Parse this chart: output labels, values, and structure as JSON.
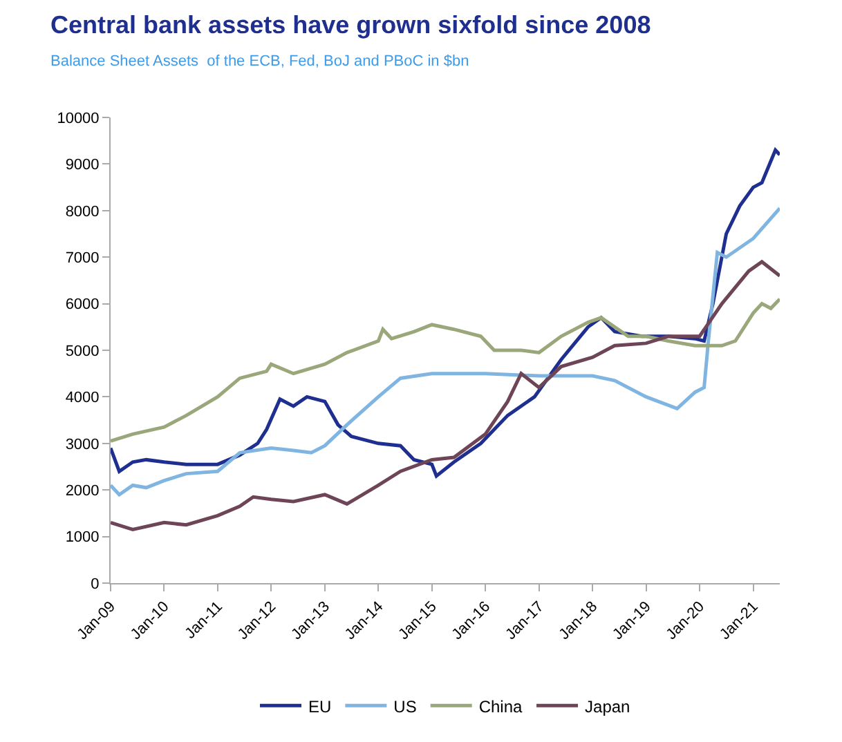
{
  "chart_data": {
    "type": "line",
    "title": "Central bank assets have grown sixfold since 2008",
    "subtitle": "Balance Sheet Assets  of the ECB, Fed, BoJ and PBoC in $bn",
    "xlim": [
      "2009-01",
      "2021-07"
    ],
    "xticks": [
      {
        "value": "2009-01",
        "label": "Jan-09"
      },
      {
        "value": "2010-01",
        "label": "Jan-10"
      },
      {
        "value": "2011-01",
        "label": "Jan-11"
      },
      {
        "value": "2012-01",
        "label": "Jan-12"
      },
      {
        "value": "2013-01",
        "label": "Jan-13"
      },
      {
        "value": "2014-01",
        "label": "Jan-14"
      },
      {
        "value": "2015-01",
        "label": "Jan-15"
      },
      {
        "value": "2016-01",
        "label": "Jan-16"
      },
      {
        "value": "2017-01",
        "label": "Jan-17"
      },
      {
        "value": "2018-01",
        "label": "Jan-18"
      },
      {
        "value": "2019-01",
        "label": "Jan-19"
      },
      {
        "value": "2020-01",
        "label": "Jan-20"
      },
      {
        "value": "2021-01",
        "label": "Jan-21"
      }
    ],
    "ylim": [
      0,
      10000
    ],
    "yticks": [
      0,
      1000,
      2000,
      3000,
      4000,
      5000,
      6000,
      7000,
      8000,
      9000,
      10000
    ],
    "legend": "bottom",
    "marker": "none",
    "line_style": "solid",
    "series": [
      {
        "name": "EU",
        "color": "#1f2f8f",
        "x": [
          "2009-01",
          "2009-03",
          "2009-06",
          "2009-09",
          "2010-01",
          "2010-06",
          "2011-01",
          "2011-06",
          "2011-10",
          "2011-12",
          "2012-03",
          "2012-06",
          "2012-09",
          "2013-01",
          "2013-04",
          "2013-07",
          "2014-01",
          "2014-06",
          "2014-09",
          "2015-01",
          "2015-02",
          "2015-06",
          "2015-12",
          "2016-06",
          "2016-12",
          "2017-06",
          "2017-12",
          "2018-03",
          "2018-06",
          "2018-12",
          "2019-06",
          "2019-12",
          "2020-02",
          "2020-04",
          "2020-07",
          "2020-10",
          "2021-01",
          "2021-03",
          "2021-06",
          "2021-07"
        ],
        "values": [
          2900,
          2400,
          2600,
          2650,
          2600,
          2550,
          2550,
          2750,
          3000,
          3300,
          3950,
          3800,
          4000,
          3900,
          3400,
          3150,
          3000,
          2950,
          2650,
          2550,
          2300,
          2600,
          3000,
          3600,
          4000,
          4800,
          5500,
          5700,
          5400,
          5300,
          5300,
          5250,
          5200,
          6000,
          7500,
          8100,
          8500,
          8600,
          9300,
          9200
        ]
      },
      {
        "name": "US",
        "color": "#7fb5e0",
        "x": [
          "2009-01",
          "2009-03",
          "2009-06",
          "2009-09",
          "2010-01",
          "2010-06",
          "2011-01",
          "2011-06",
          "2012-01",
          "2012-06",
          "2012-10",
          "2013-01",
          "2013-06",
          "2014-01",
          "2014-06",
          "2015-01",
          "2016-01",
          "2017-01",
          "2018-01",
          "2018-06",
          "2019-01",
          "2019-08",
          "2019-12",
          "2020-02",
          "2020-03",
          "2020-05",
          "2020-07",
          "2021-01",
          "2021-07"
        ],
        "values": [
          2100,
          1900,
          2100,
          2050,
          2200,
          2350,
          2400,
          2800,
          2900,
          2850,
          2800,
          2950,
          3400,
          4000,
          4400,
          4500,
          4500,
          4450,
          4450,
          4350,
          4000,
          3750,
          4100,
          4200,
          5200,
          7100,
          7000,
          7400,
          8050
        ]
      },
      {
        "name": "China",
        "color": "#9aa77a",
        "x": [
          "2009-01",
          "2009-06",
          "2010-01",
          "2010-06",
          "2011-01",
          "2011-06",
          "2011-12",
          "2012-01",
          "2012-06",
          "2013-01",
          "2013-06",
          "2014-01",
          "2014-02",
          "2014-04",
          "2014-09",
          "2015-01",
          "2015-06",
          "2015-12",
          "2016-03",
          "2016-09",
          "2017-01",
          "2017-06",
          "2017-12",
          "2018-03",
          "2018-09",
          "2019-01",
          "2019-06",
          "2019-12",
          "2020-06",
          "2020-09",
          "2021-01",
          "2021-03",
          "2021-05",
          "2021-07"
        ],
        "values": [
          3050,
          3200,
          3350,
          3600,
          4000,
          4400,
          4550,
          4700,
          4500,
          4700,
          4950,
          5200,
          5450,
          5250,
          5400,
          5550,
          5450,
          5300,
          5000,
          5000,
          4950,
          5300,
          5600,
          5700,
          5300,
          5300,
          5200,
          5100,
          5100,
          5200,
          5800,
          6000,
          5900,
          6100
        ]
      },
      {
        "name": "Japan",
        "color": "#6e4457",
        "x": [
          "2009-01",
          "2009-06",
          "2010-01",
          "2010-06",
          "2011-01",
          "2011-06",
          "2011-09",
          "2012-01",
          "2012-06",
          "2013-01",
          "2013-06",
          "2014-01",
          "2014-06",
          "2015-01",
          "2015-06",
          "2016-01",
          "2016-06",
          "2016-09",
          "2017-01",
          "2017-06",
          "2018-01",
          "2018-06",
          "2019-01",
          "2019-06",
          "2020-01",
          "2020-06",
          "2020-12",
          "2021-03",
          "2021-07"
        ],
        "values": [
          1300,
          1150,
          1300,
          1250,
          1450,
          1650,
          1850,
          1800,
          1750,
          1900,
          1700,
          2100,
          2400,
          2650,
          2700,
          3200,
          3900,
          4500,
          4200,
          4650,
          4850,
          5100,
          5150,
          5300,
          5300,
          6000,
          6700,
          6900,
          6600
        ]
      }
    ]
  }
}
